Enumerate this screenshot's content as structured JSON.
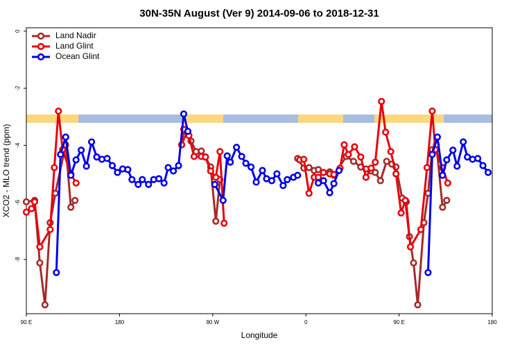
{
  "chart_data": {
    "type": "line",
    "title": "30N-35N August (Ver 9)   2014-09-06 to 2018-12-31",
    "x_label": "Longitude",
    "y_label": "XCO2 - MLO trend (ppm)",
    "xlim": [
      90,
      540
    ],
    "ylim": [
      -9.9,
      0.12
    ],
    "xticks": [
      {
        "value": 90,
        "label": "90 E"
      },
      {
        "value": 180,
        "label": "180"
      },
      {
        "value": 270,
        "label": "90 W"
      },
      {
        "value": 360,
        "label": "0"
      },
      {
        "value": 450,
        "label": "90 E"
      },
      {
        "value": 540,
        "label": "180"
      }
    ],
    "yticks": [
      0,
      -2,
      -4,
      -6,
      -8
    ],
    "legend": "top-left",
    "series": [
      {
        "name": "Land Nadir",
        "color": "#a52a2a",
        "x": [
          90,
          98,
          103,
          108,
          113,
          118,
          128,
          133,
          137,
          null,
          240,
          245,
          249,
          254,
          259,
          263,
          268,
          273,
          277,
          null,
          352,
          358,
          363,
          368,
          372,
          377,
          383,
          387,
          399,
          406,
          413,
          418,
          423,
          427,
          432,
          438,
          443,
          447,
          453,
          457,
          460,
          464,
          468,
          474,
          478,
          482,
          486,
          492,
          496
        ],
        "values": [
          -5.98,
          -5.93,
          -8.12,
          -9.59,
          -6.71,
          -5.68,
          -3.98,
          -6.17,
          -5.93,
          null,
          -3.98,
          -3.54,
          -3.85,
          -4.22,
          -4.2,
          -4.41,
          -4.76,
          -6.66,
          -5.2,
          null,
          -4.46,
          -4.8,
          -4.78,
          -4.88,
          -4.85,
          -4.95,
          -4.93,
          -5.05,
          -4.39,
          -4.56,
          -4.76,
          -4.83,
          -4.9,
          -4.95,
          -5.24,
          -4.56,
          -4.66,
          -4.76,
          -5.85,
          -5.98,
          -7.2,
          -8.12,
          -9.59,
          -6.71,
          -5.68,
          -4.15,
          -3.98,
          -6.17,
          -5.93
        ]
      },
      {
        "name": "Land Glint",
        "color": "#e8000b",
        "x": [
          90,
          95,
          98,
          103,
          113,
          117,
          121,
          125,
          133,
          138,
          null,
          240,
          242,
          247,
          252,
          259,
          263,
          268,
          273,
          277,
          281,
          null,
          354,
          358,
          363,
          368,
          372,
          377,
          383,
          387,
          393,
          397,
          401,
          407,
          413,
          418,
          423,
          427,
          433,
          437,
          442,
          447,
          452,
          456,
          461,
          471,
          477,
          482,
          485,
          492,
          497
        ],
        "values": [
          -6.34,
          -6.22,
          -5.98,
          -7.56,
          -6.95,
          -4.78,
          -2.8,
          -4.15,
          -5.0,
          -5.32,
          null,
          -3.98,
          -3.44,
          -3.66,
          -4.39,
          -4.39,
          -4.41,
          -4.9,
          -5.12,
          -4.22,
          -6.73,
          null,
          -4.51,
          -4.49,
          -5.68,
          -5.12,
          -5.12,
          -4.95,
          -5.0,
          -5.02,
          -4.8,
          -3.98,
          -4.32,
          -4.05,
          -4.41,
          -5.12,
          -4.8,
          -4.59,
          -2.46,
          -3.54,
          -4.22,
          -5.0,
          -6.37,
          -5.93,
          -7.56,
          -6.95,
          -4.78,
          -2.8,
          -4.15,
          -4.78,
          -5.32
        ]
      },
      {
        "name": "Ocean Glint",
        "color": "#0000e6",
        "x": [
          119,
          123,
          128,
          133,
          138,
          143,
          148,
          153,
          158,
          163,
          168,
          173,
          178,
          183,
          188,
          192,
          198,
          202,
          208,
          213,
          218,
          223,
          227,
          232,
          237,
          242,
          246,
          null,
          272,
          280,
          284,
          287,
          293,
          298,
          302,
          307,
          312,
          318,
          322,
          327,
          332,
          338,
          342,
          348,
          352,
          null,
          372,
          377,
          383,
          387,
          392,
          null,
          478,
          482,
          487,
          492,
          496,
          502,
          506,
          512,
          516,
          521,
          526,
          531,
          536
        ],
        "values": [
          -8.46,
          -4.32,
          -3.71,
          -5.05,
          -4.51,
          -4.17,
          -4.73,
          -3.88,
          -4.41,
          -4.49,
          -4.46,
          -4.71,
          -4.95,
          -4.83,
          -4.85,
          -5.2,
          -5.37,
          -5.2,
          -5.37,
          -5.2,
          -5.17,
          -5.32,
          -4.78,
          -4.9,
          -4.71,
          -2.9,
          -3.51,
          null,
          -5.37,
          -5.93,
          -4.37,
          -4.59,
          -4.07,
          -4.39,
          -4.63,
          -4.76,
          -5.29,
          -4.88,
          -5.17,
          -5.24,
          -5.0,
          -5.41,
          -5.2,
          -5.12,
          -5.05,
          null,
          -5.32,
          -5.24,
          -5.66,
          -5.34,
          -4.88,
          null,
          -8.46,
          -4.32,
          -3.71,
          -5.05,
          -4.51,
          -4.17,
          -4.73,
          -3.88,
          -4.41,
          -4.49,
          -4.46,
          -4.71,
          -4.95
        ]
      }
    ]
  }
}
